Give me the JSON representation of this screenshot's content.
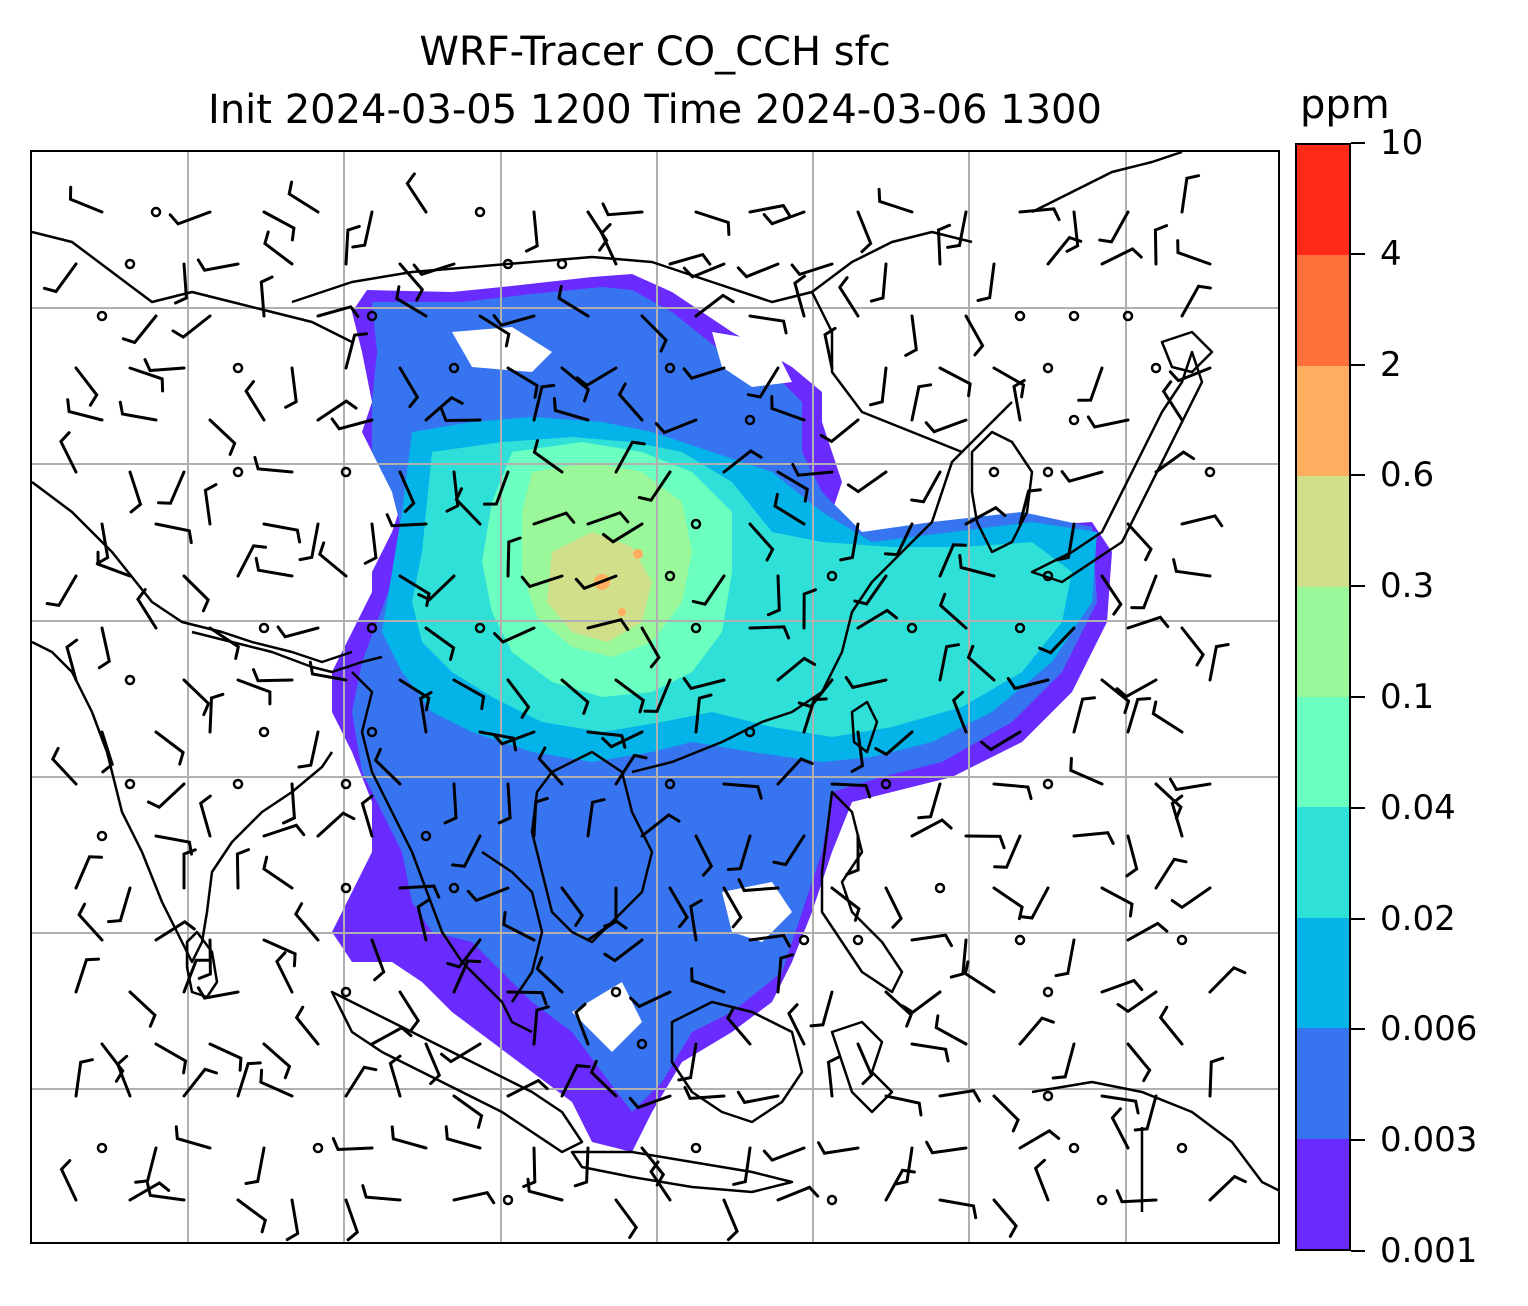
{
  "title": {
    "line1": "WRF-Tracer CO_CCH sfc",
    "line2": "Init 2024-03-05 1200 Time 2024-03-06 1300"
  },
  "colorbar": {
    "unit": "ppm",
    "levels": [
      {
        "label": "0.001",
        "color": "#6a2bff"
      },
      {
        "label": "0.003",
        "color": "#3775f0"
      },
      {
        "label": "0.006",
        "color": "#04b3e8"
      },
      {
        "label": "0.02",
        "color": "#2ee0d8"
      },
      {
        "label": "0.04",
        "color": "#6bffc0"
      },
      {
        "label": "0.1",
        "color": "#9bf89a"
      },
      {
        "label": "0.3",
        "color": "#d0e08a"
      },
      {
        "label": "0.6",
        "color": "#ffae60"
      },
      {
        "label": "2",
        "color": "#ff7138"
      },
      {
        "label": "4",
        "color": "#ff2a18"
      },
      {
        "label": "10",
        "color": null
      }
    ]
  },
  "map": {
    "variable": "CO_CCH",
    "level": "sfc",
    "gridlines": true,
    "wind_barbs": true,
    "coastlines": true,
    "gridline_color": "#b0b0b0"
  }
}
